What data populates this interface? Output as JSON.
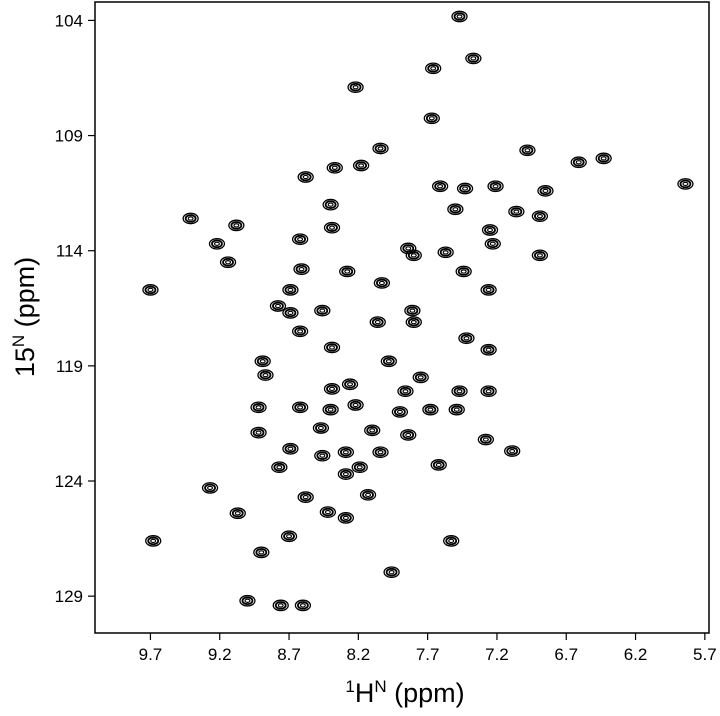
{
  "chart_data": {
    "type": "scatter",
    "xlabel": [
      {
        "text": "1",
        "sup": true
      },
      {
        "text": "H"
      },
      {
        "text": "N",
        "sup": true
      },
      {
        "text": " (ppm)"
      }
    ],
    "ylabel": [
      {
        "text": "15"
      },
      {
        "text": "N",
        "sup": true
      },
      {
        "text": " (ppm)"
      }
    ],
    "xlim": [
      10.1,
      5.67
    ],
    "ylim": [
      103.2,
      130.6
    ],
    "xticks": [
      9.7,
      9.2,
      8.7,
      8.2,
      7.7,
      7.2,
      6.7,
      6.2,
      5.7
    ],
    "yticks": [
      104,
      109,
      114,
      119,
      124,
      129
    ],
    "color": "#000000",
    "x": [
      7.47,
      7.37,
      7.66,
      8.22,
      7.67,
      8.04,
      6.98,
      6.61,
      6.43,
      5.84,
      8.37,
      8.58,
      8.18,
      9.41,
      9.08,
      8.4,
      8.39,
      9.22,
      9.14,
      8.62,
      9.7,
      7.84,
      7.57,
      8.61,
      8.28,
      7.8,
      7.61,
      7.43,
      7.21,
      7.5,
      7.25,
      7.23,
      7.06,
      6.89,
      6.85,
      6.89,
      7.44,
      7.26,
      8.03,
      8.69,
      8.78,
      8.69,
      8.46,
      8.06,
      7.81,
      7.8,
      7.42,
      7.26,
      8.62,
      8.39,
      8.89,
      8.87,
      7.98,
      7.75,
      8.39,
      8.26,
      7.86,
      7.47,
      7.26,
      8.92,
      8.62,
      8.4,
      8.22,
      7.9,
      7.68,
      7.49,
      8.92,
      8.47,
      8.1,
      7.84,
      7.28,
      7.09,
      8.69,
      8.29,
      8.46,
      8.04,
      7.62,
      8.19,
      8.77,
      8.29,
      9.27,
      9.07,
      8.58,
      8.13,
      8.42,
      8.29,
      8.7,
      7.53,
      9.68,
      8.9,
      7.96,
      9.0,
      8.76,
      8.6
    ],
    "y": [
      103.83,
      105.65,
      106.08,
      106.9,
      108.25,
      109.56,
      109.64,
      110.16,
      109.99,
      111.1,
      110.4,
      110.8,
      110.3,
      112.6,
      112.9,
      112.0,
      113.0,
      113.7,
      114.5,
      113.5,
      115.7,
      113.9,
      114.07,
      114.8,
      114.9,
      114.2,
      111.2,
      111.3,
      111.2,
      112.2,
      113.1,
      113.7,
      112.3,
      112.5,
      111.4,
      114.2,
      114.9,
      115.7,
      115.4,
      115.7,
      116.4,
      116.7,
      116.6,
      117.1,
      116.6,
      117.1,
      117.8,
      118.3,
      117.5,
      118.2,
      118.8,
      119.4,
      118.8,
      119.5,
      120.0,
      119.8,
      120.1,
      120.1,
      120.1,
      120.8,
      120.8,
      120.9,
      120.7,
      121.0,
      120.9,
      120.9,
      121.9,
      121.7,
      121.8,
      122.0,
      122.2,
      122.7,
      122.6,
      122.75,
      122.9,
      122.75,
      123.3,
      123.4,
      123.4,
      123.7,
      124.3,
      125.4,
      124.7,
      124.6,
      125.35,
      125.6,
      126.4,
      126.6,
      126.6,
      127.1,
      127.96,
      129.2,
      129.4,
      129.4
    ]
  }
}
